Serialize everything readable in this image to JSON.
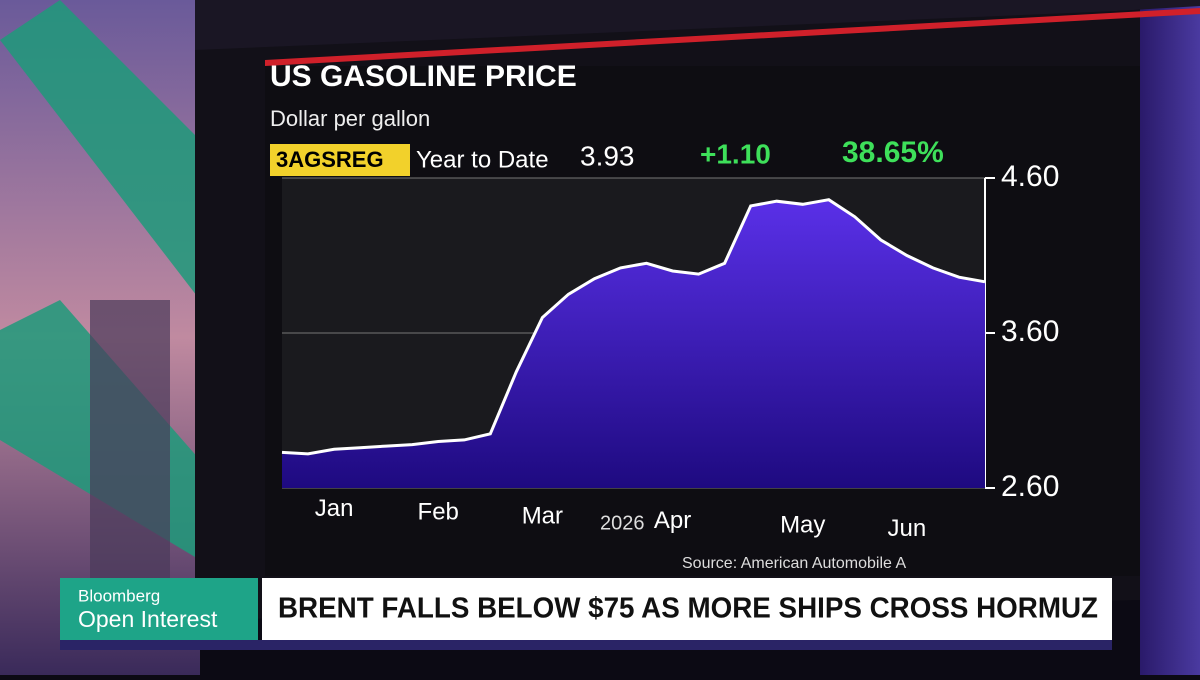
{
  "chart_data": {
    "type": "area",
    "title": "US GASOLINE PRICE",
    "subtitle": "Dollar per gallon",
    "ticker": "3AGSREG",
    "period": "Year to Date",
    "last": "3.93",
    "change": "+1.10",
    "change_pct": "38.65%",
    "year_label": "2026",
    "source": "Source: American Automobile A",
    "categories": [
      null,
      null,
      "Jan",
      null,
      null,
      null,
      "Feb",
      null,
      null,
      null,
      "Mar",
      null,
      null,
      null,
      null,
      "Apr",
      null,
      null,
      null,
      null,
      "May",
      null,
      null,
      null,
      "Jun",
      null,
      null,
      null
    ],
    "values": [
      2.83,
      2.82,
      2.85,
      2.86,
      2.87,
      2.88,
      2.9,
      2.91,
      2.95,
      3.35,
      3.7,
      3.85,
      3.95,
      4.02,
      4.05,
      4.0,
      3.98,
      4.05,
      4.42,
      4.45,
      4.43,
      4.46,
      4.35,
      4.2,
      4.1,
      4.02,
      3.96,
      3.93
    ],
    "color": "#4a22d0",
    "ylim": [
      2.6,
      4.6
    ],
    "yticks": [
      {
        "value": 2.6,
        "label": "2.60"
      },
      {
        "value": 3.6,
        "label": "3.60"
      },
      {
        "value": 4.6,
        "label": "4.60"
      }
    ],
    "grid": true
  },
  "lower_third": {
    "brand": "Bloomberg",
    "show": "Open Interest",
    "headline": "BRENT FALLS BELOW $75 AS MORE SHIPS CROSS HORMUZ"
  }
}
